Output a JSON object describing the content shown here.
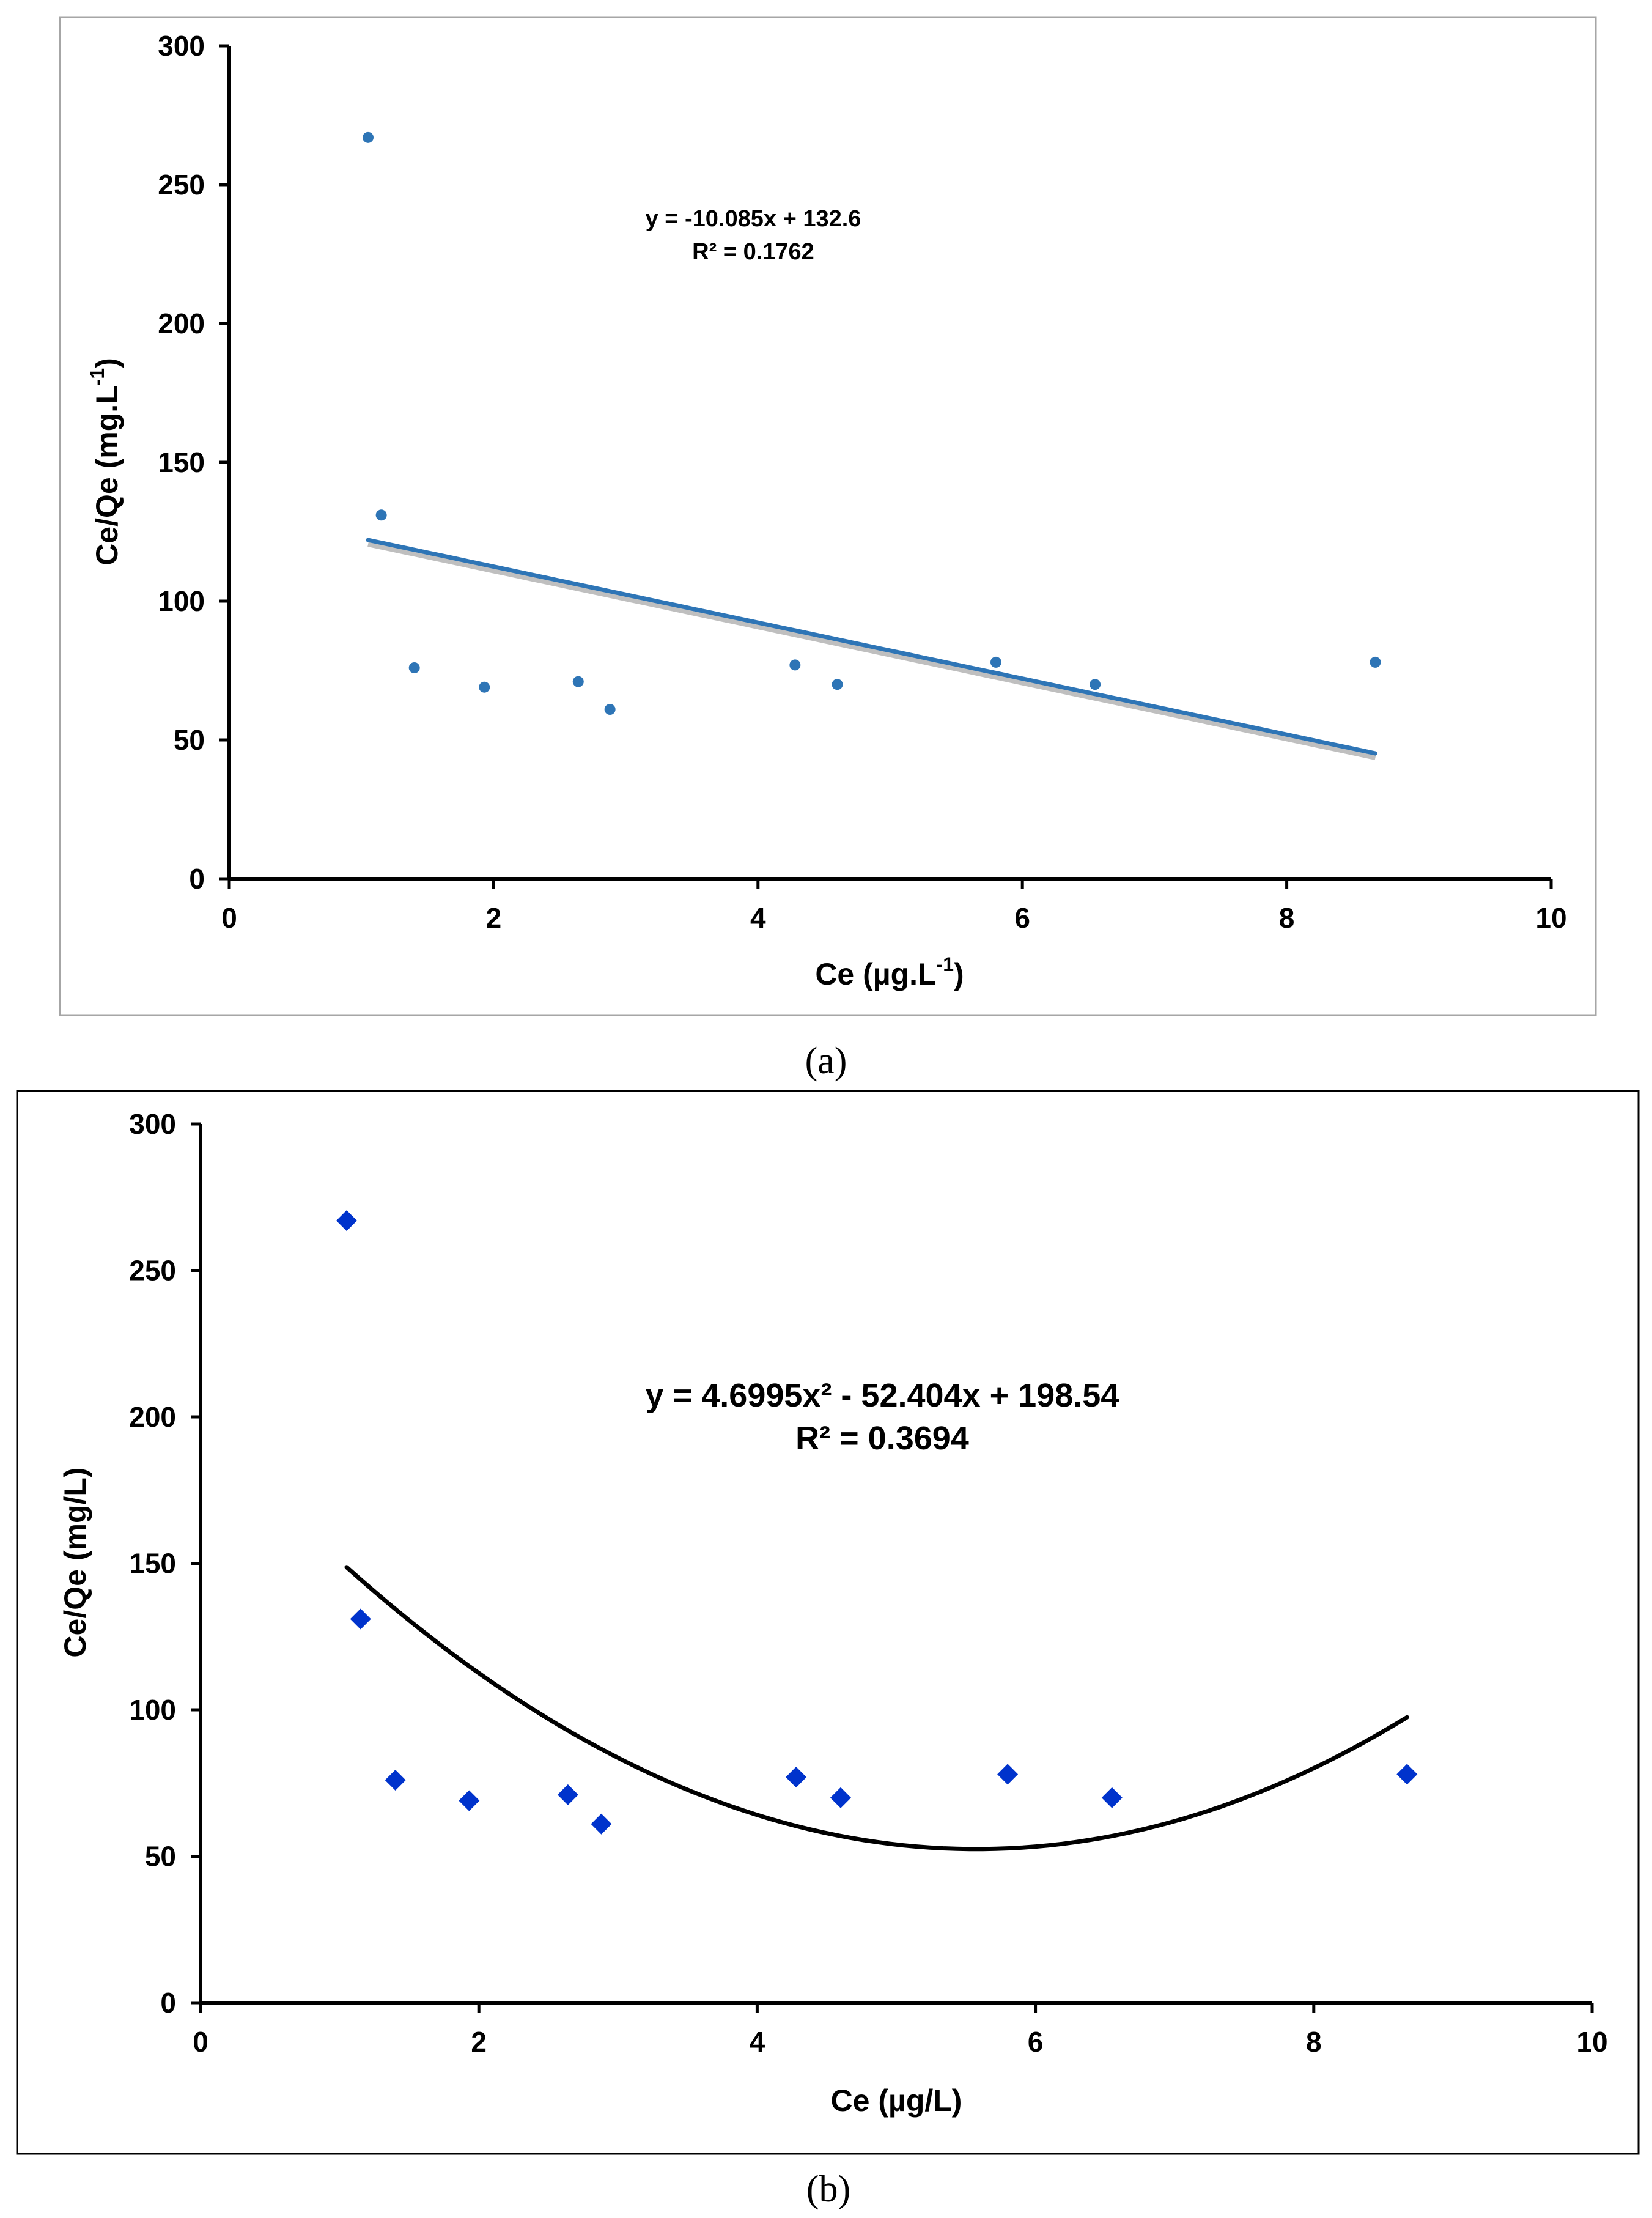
{
  "chart_data": [
    {
      "type": "scatter",
      "panel_label": "(a)",
      "xlabel": "Ce (µg.L",
      "xlabel_sup": "-1",
      "xlabel_end": ")",
      "ylabel": "Ce/Qe (mg.L",
      "ylabel_sup": "-1",
      "ylabel_end": ")",
      "xlim": [
        0,
        10
      ],
      "ylim": [
        0,
        300
      ],
      "xticks": [
        0,
        2,
        4,
        6,
        8,
        10
      ],
      "yticks": [
        0,
        50,
        100,
        150,
        200,
        250,
        300
      ],
      "grid": false,
      "series": [
        {
          "name": "data",
          "color": "#2E75B6",
          "x": [
            1.05,
            1.15,
            1.4,
            1.93,
            2.64,
            2.88,
            4.28,
            4.6,
            5.8,
            6.55,
            8.67
          ],
          "y": [
            267,
            131,
            76,
            69,
            71,
            61,
            77,
            70,
            78,
            70,
            78
          ]
        }
      ],
      "trendline": {
        "type": "linear",
        "a": -10.085,
        "b": 132.6,
        "x_range": [
          1.05,
          8.67
        ],
        "color": "#2E75B6"
      },
      "equation_line1": "y = -10.085x + 132.6",
      "equation_line2": "R² = 0.1762"
    },
    {
      "type": "scatter",
      "panel_label": "(b)",
      "xlabel": "Ce (µg/L)",
      "ylabel": "Ce/Qe (mg/L)",
      "xlim": [
        0,
        10
      ],
      "ylim": [
        0,
        300
      ],
      "xticks": [
        0,
        2,
        4,
        6,
        8,
        10
      ],
      "yticks": [
        0,
        50,
        100,
        150,
        200,
        250,
        300
      ],
      "grid": false,
      "series": [
        {
          "name": "data",
          "color": "#0033CC",
          "x": [
            1.05,
            1.15,
            1.4,
            1.93,
            2.64,
            2.88,
            4.28,
            4.6,
            5.8,
            6.55,
            8.67
          ],
          "y": [
            267,
            131,
            76,
            69,
            71,
            61,
            77,
            70,
            78,
            70,
            78
          ]
        }
      ],
      "trendline": {
        "type": "poly2",
        "a": 4.6995,
        "b": -52.404,
        "c": 198.54,
        "x_range": [
          1.05,
          8.67
        ],
        "color": "#000000"
      },
      "equation_line1": "y = 4.6995x² - 52.404x + 198.54",
      "equation_line2": "R² = 0.3694"
    }
  ]
}
